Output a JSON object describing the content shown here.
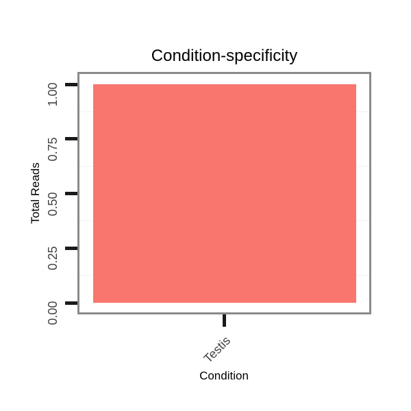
{
  "title": "Condition-specificity",
  "chart_data": {
    "type": "bar",
    "title": "Condition-specificity",
    "xlabel": "Condition",
    "ylabel": "Total Reads",
    "categories": [
      "Testis"
    ],
    "values": [
      1.0
    ],
    "ylim": [
      0,
      1
    ],
    "ytick_values": [
      0,
      0.25,
      0.5,
      0.75,
      1
    ],
    "ytick_labels": [
      "0.00",
      "0.25",
      "0.50",
      "0.75",
      "1.00"
    ],
    "minor_gridlines": [
      0.125,
      0.375,
      0.625,
      0.875
    ],
    "grid": "minor-only",
    "legend": "none",
    "x_tick_label_angle": 45,
    "y_tick_label_angle": 90,
    "colors": {
      "bar_fill": "#F8766D",
      "panel_border": "#8A8A8A",
      "panel_background": "#FFFFFF",
      "tick_mark": "#1A1A1A",
      "tick_label": "#404040",
      "minor_grid": "#F7F7F7",
      "background": "#FFFFFF"
    }
  }
}
